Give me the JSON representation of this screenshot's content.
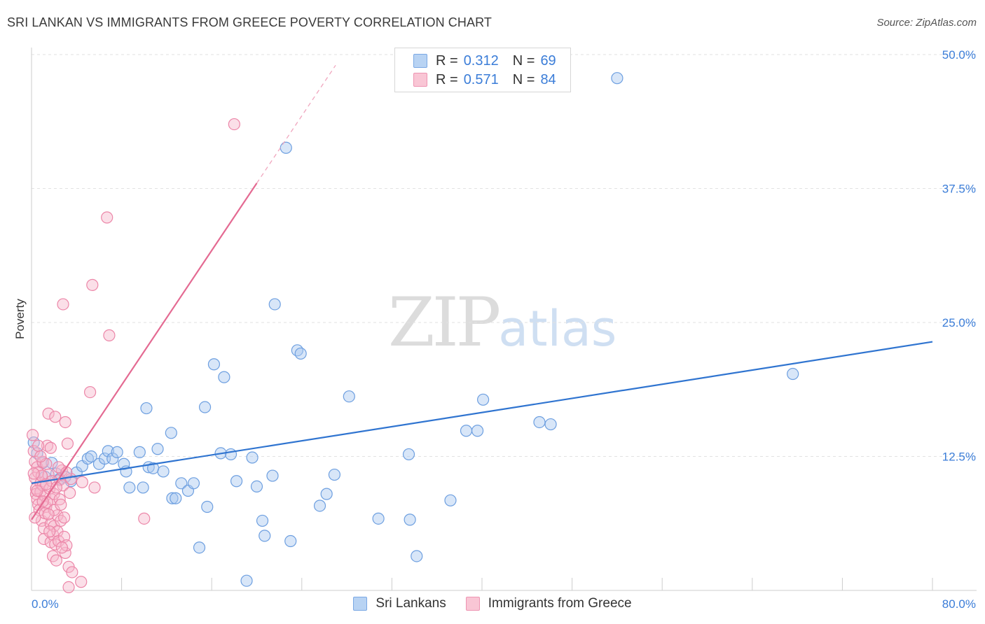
{
  "title": "SRI LANKAN VS IMMIGRANTS FROM GREECE POVERTY CORRELATION CHART",
  "source": "Source: ZipAtlas.com",
  "watermark": {
    "zip": "ZIP",
    "atlas": "atlas"
  },
  "legend": {
    "items": [
      {
        "r_label": "R =",
        "r_value": "0.312",
        "n_label": "N =",
        "n_value": "69",
        "color": "#8fb8ea"
      },
      {
        "r_label": "R =",
        "r_value": "0.571",
        "n_label": "N =",
        "n_value": "84",
        "color": "#f4a8c0"
      }
    ]
  },
  "bottom_legend": [
    "Sri Lankans",
    "Immigrants from Greece"
  ],
  "colors": {
    "blue_fill": "#a9c8ef",
    "blue_stroke": "#6d9fe0",
    "blue_line": "#2f74d0",
    "pink_fill": "#f6b9cc",
    "pink_stroke": "#ec86a8",
    "pink_line": "#e46a92"
  },
  "chart_data": {
    "type": "scatter",
    "title": "SRI LANKAN VS IMMIGRANTS FROM GREECE POVERTY CORRELATION CHART",
    "xlabel": "",
    "ylabel": "Poverty",
    "xlim": [
      0,
      80
    ],
    "ylim": [
      0,
      50
    ],
    "x_tick_labels": [
      "0.0%",
      "80.0%"
    ],
    "y_ticks": [
      12.5,
      25.0,
      37.5,
      50.0
    ],
    "y_tick_labels": [
      "12.5%",
      "25.0%",
      "37.5%",
      "50.0%"
    ],
    "series": [
      {
        "name": "Sri Lankans",
        "R": 0.312,
        "N": 69,
        "trend": {
          "x": [
            0,
            80
          ],
          "y": [
            10.0,
            23.2
          ]
        },
        "points": [
          [
            0.2,
            13.8
          ],
          [
            0.5,
            12.8
          ],
          [
            1.0,
            11.9
          ],
          [
            1.2,
            10.6
          ],
          [
            1.8,
            11.9
          ],
          [
            2.2,
            10.9
          ],
          [
            2.5,
            10.4
          ],
          [
            3.0,
            10.6
          ],
          [
            3.5,
            10.2
          ],
          [
            4.0,
            11.0
          ],
          [
            4.5,
            11.6
          ],
          [
            5.0,
            12.3
          ],
          [
            5.3,
            12.5
          ],
          [
            6.0,
            11.8
          ],
          [
            6.5,
            12.3
          ],
          [
            6.8,
            13.0
          ],
          [
            7.2,
            12.3
          ],
          [
            7.6,
            12.9
          ],
          [
            8.2,
            11.8
          ],
          [
            8.4,
            11.1
          ],
          [
            8.7,
            9.6
          ],
          [
            9.6,
            12.9
          ],
          [
            9.9,
            9.6
          ],
          [
            10.2,
            17.0
          ],
          [
            10.4,
            11.5
          ],
          [
            10.8,
            11.4
          ],
          [
            11.2,
            13.2
          ],
          [
            11.7,
            11.1
          ],
          [
            12.4,
            14.7
          ],
          [
            12.5,
            8.6
          ],
          [
            12.8,
            8.6
          ],
          [
            13.3,
            10.0
          ],
          [
            13.9,
            9.3
          ],
          [
            14.4,
            10.0
          ],
          [
            14.9,
            4.0
          ],
          [
            15.4,
            17.1
          ],
          [
            15.6,
            7.8
          ],
          [
            16.2,
            21.1
          ],
          [
            16.8,
            12.8
          ],
          [
            17.1,
            19.9
          ],
          [
            17.7,
            12.7
          ],
          [
            18.2,
            10.2
          ],
          [
            19.1,
            0.9
          ],
          [
            19.6,
            12.4
          ],
          [
            20.0,
            9.7
          ],
          [
            20.5,
            6.5
          ],
          [
            20.7,
            5.1
          ],
          [
            21.4,
            10.7
          ],
          [
            21.6,
            26.7
          ],
          [
            22.6,
            41.3
          ],
          [
            23.0,
            4.6
          ],
          [
            23.6,
            22.4
          ],
          [
            23.9,
            22.1
          ],
          [
            25.6,
            7.9
          ],
          [
            26.2,
            9.0
          ],
          [
            26.9,
            10.8
          ],
          [
            28.2,
            18.1
          ],
          [
            30.8,
            6.7
          ],
          [
            33.5,
            12.7
          ],
          [
            33.6,
            6.6
          ],
          [
            34.2,
            3.2
          ],
          [
            37.2,
            8.4
          ],
          [
            38.6,
            14.9
          ],
          [
            39.6,
            14.9
          ],
          [
            40.1,
            17.8
          ],
          [
            45.1,
            15.7
          ],
          [
            46.1,
            15.5
          ],
          [
            52.0,
            47.8
          ],
          [
            67.6,
            20.2
          ]
        ]
      },
      {
        "name": "Immigrants from Greece",
        "R": 0.571,
        "N": 84,
        "trend": {
          "x": [
            0,
            20.0
          ],
          "y": [
            6.6,
            38.0
          ]
        },
        "trend_dashed": {
          "x": [
            20.0,
            27.0
          ],
          "y": [
            38.0,
            49.0
          ]
        },
        "points": [
          [
            0.1,
            14.5
          ],
          [
            0.2,
            13.0
          ],
          [
            0.3,
            12.0
          ],
          [
            0.3,
            10.5
          ],
          [
            0.4,
            9.5
          ],
          [
            0.4,
            9.0
          ],
          [
            0.5,
            11.5
          ],
          [
            0.5,
            8.5
          ],
          [
            0.6,
            11.0
          ],
          [
            0.6,
            8.0
          ],
          [
            0.7,
            7.5
          ],
          [
            0.8,
            10.0
          ],
          [
            0.8,
            9.2
          ],
          [
            0.9,
            6.5
          ],
          [
            1.0,
            12.0
          ],
          [
            1.0,
            9.8
          ],
          [
            1.1,
            5.8
          ],
          [
            1.1,
            4.8
          ],
          [
            1.2,
            8.8
          ],
          [
            1.3,
            7.8
          ],
          [
            1.3,
            11.8
          ],
          [
            1.4,
            13.5
          ],
          [
            1.5,
            16.5
          ],
          [
            1.5,
            10.8
          ],
          [
            1.6,
            9.5
          ],
          [
            1.7,
            6.2
          ],
          [
            1.7,
            4.5
          ],
          [
            1.8,
            8.5
          ],
          [
            1.9,
            5.2
          ],
          [
            1.9,
            3.2
          ],
          [
            2.0,
            9.0
          ],
          [
            2.0,
            6.0
          ],
          [
            2.1,
            4.3
          ],
          [
            2.1,
            16.2
          ],
          [
            2.2,
            2.8
          ],
          [
            2.3,
            7.0
          ],
          [
            2.3,
            5.5
          ],
          [
            2.4,
            4.6
          ],
          [
            2.5,
            8.5
          ],
          [
            2.5,
            10.3
          ],
          [
            2.6,
            6.5
          ],
          [
            2.7,
            11.2
          ],
          [
            2.8,
            9.8
          ],
          [
            2.8,
            26.7
          ],
          [
            2.9,
            5.0
          ],
          [
            3.0,
            15.7
          ],
          [
            3.0,
            3.5
          ],
          [
            3.1,
            4.2
          ],
          [
            3.2,
            13.7
          ],
          [
            3.3,
            2.2
          ],
          [
            3.4,
            9.1
          ],
          [
            3.5,
            10.4
          ],
          [
            4.4,
            0.8
          ],
          [
            4.5,
            10.1
          ],
          [
            5.2,
            18.5
          ],
          [
            5.4,
            28.5
          ],
          [
            5.6,
            9.6
          ],
          [
            6.7,
            34.8
          ],
          [
            6.9,
            23.8
          ],
          [
            10.0,
            6.7
          ],
          [
            18.0,
            43.5
          ],
          [
            0.3,
            6.8
          ],
          [
            0.6,
            13.5
          ],
          [
            0.9,
            10.7
          ],
          [
            1.2,
            7.2
          ],
          [
            1.4,
            8.2
          ],
          [
            1.6,
            5.5
          ],
          [
            1.8,
            10.2
          ],
          [
            2.0,
            7.5
          ],
          [
            2.2,
            9.6
          ],
          [
            2.4,
            11.5
          ],
          [
            2.6,
            8.0
          ],
          [
            2.7,
            4.0
          ],
          [
            2.9,
            6.8
          ],
          [
            3.1,
            11.0
          ],
          [
            0.2,
            10.9
          ],
          [
            0.5,
            9.3
          ],
          [
            0.8,
            12.5
          ],
          [
            1.0,
            8.3
          ],
          [
            1.3,
            9.9
          ],
          [
            1.5,
            7.1
          ],
          [
            1.7,
            13.3
          ],
          [
            3.3,
            0.3
          ],
          [
            3.6,
            1.7
          ]
        ]
      }
    ]
  }
}
